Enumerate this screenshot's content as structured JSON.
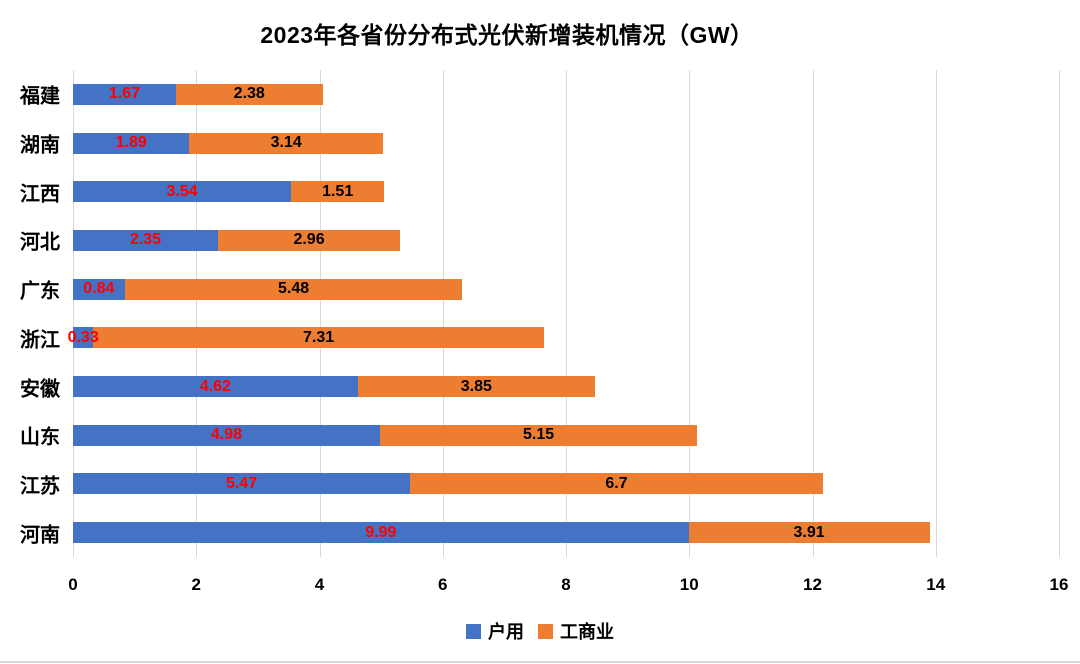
{
  "title": "2023年各省份分布式光伏新增装机情况（GW）",
  "colors": {
    "residential_bar": "#4472C4",
    "commercial_bar": "#ED7D31",
    "residential_value_label": "#FF0000",
    "commercial_value_label": "#000000",
    "gridline": "#D9D9D9",
    "bottom_border": "#D9D9D9"
  },
  "chart_data": {
    "type": "bar",
    "orientation": "horizontal",
    "stacked": true,
    "title": "2023年各省份分布式光伏新增装机情况（GW）",
    "categories": [
      "福建",
      "湖南",
      "江西",
      "河北",
      "广东",
      "浙江",
      "安徽",
      "山东",
      "江苏",
      "河南"
    ],
    "series": [
      {
        "name": "户用",
        "color": "#4472C4",
        "label_color": "#FF0000",
        "values": [
          1.67,
          1.89,
          3.54,
          2.35,
          0.84,
          0.33,
          4.62,
          4.98,
          5.47,
          9.99
        ]
      },
      {
        "name": "工商业",
        "color": "#ED7D31",
        "label_color": "#000000",
        "values": [
          2.38,
          3.14,
          1.51,
          2.96,
          5.48,
          7.31,
          3.85,
          5.15,
          6.7,
          3.91
        ]
      }
    ],
    "x_axis": {
      "min": 0,
      "max": 16,
      "tick_step": 2,
      "ticks": [
        0,
        2,
        4,
        6,
        8,
        10,
        12,
        14,
        16
      ]
    },
    "legend": [
      "户用",
      "工商业"
    ],
    "legend_position": "bottom",
    "grid": true,
    "value_labels": "inside-center"
  }
}
